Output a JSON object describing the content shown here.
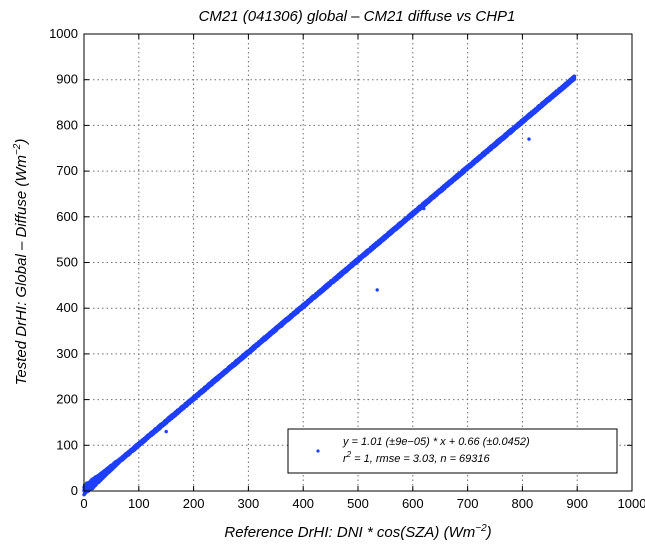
{
  "chart_data": {
    "type": "scatter",
    "title": "CM21 (041306) global – CM21 diffuse vs CHP1",
    "xlabel": "Reference DrHI: DNI * cos(SZA) (Wm⁻²)",
    "ylabel": "Tested DrHI: Global – Diffuse (Wm⁻²)",
    "xlim": [
      0,
      1000
    ],
    "ylim": [
      0,
      1000
    ],
    "xticks": [
      0,
      100,
      200,
      300,
      400,
      500,
      600,
      700,
      800,
      900,
      1000
    ],
    "yticks": [
      0,
      100,
      200,
      300,
      400,
      500,
      600,
      700,
      800,
      900,
      1000
    ],
    "grid": true,
    "marker_color": "#1f3fff",
    "fit": {
      "slope": 1.01,
      "intercept": 0.66
    },
    "main_cloud": {
      "x_range": [
        0,
        895
      ],
      "y_range": [
        0,
        905
      ]
    },
    "outliers": [
      {
        "x": 535,
        "y": 440
      },
      {
        "x": 812,
        "y": 770
      },
      {
        "x": 150,
        "y": 130
      },
      {
        "x": 620,
        "y": 618
      }
    ],
    "legend": {
      "position": "bottom-right",
      "line1": "y =  1.01 (±9e−05) * x  + 0.66 (±0.0452)",
      "line2": "r² =    1, rmse = 3.03, n =   69316"
    }
  }
}
